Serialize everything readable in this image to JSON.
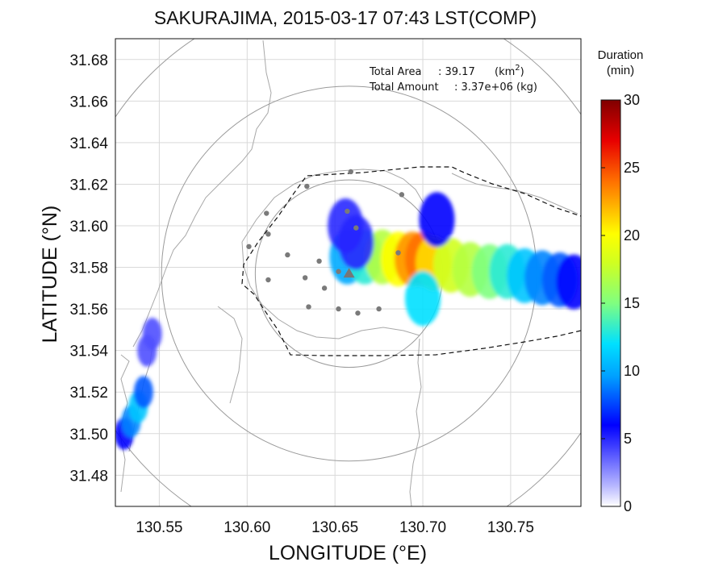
{
  "chart_data": {
    "type": "heatmap",
    "title": "SAKURAJIMA, 2015-03-17 07:43 LST(COMP)",
    "xlabel": "LONGITUDE (°E)",
    "ylabel": "LATITUDE (°N)",
    "xlim": [
      130.525,
      130.79
    ],
    "ylim": [
      31.465,
      31.69
    ],
    "xticks": [
      "130.55",
      "130.60",
      "130.65",
      "130.70",
      "130.75"
    ],
    "yticks": [
      "31.48",
      "31.50",
      "31.52",
      "31.54",
      "31.56",
      "31.58",
      "31.60",
      "31.62",
      "31.64",
      "31.66",
      "31.68"
    ],
    "grid": true,
    "annotations": {
      "area_label": "Total Area",
      "area_value": ": 39.17",
      "area_unit_pre": "(km",
      "area_unit_sup": "2",
      "area_unit_post": ")",
      "amount_label": "Total Amount",
      "amount_value": ": 3.37e+06",
      "amount_unit": "(kg)"
    },
    "colorbar": {
      "title_line1": "Duration",
      "title_line2": "(min)",
      "range": [
        0,
        30
      ],
      "ticks": [
        "0",
        "5",
        "10",
        "15",
        "20",
        "25",
        "30"
      ]
    },
    "vent": {
      "lon": 130.658,
      "lat": 31.577
    },
    "range_circles_km": [
      5,
      10,
      15
    ],
    "stations": [
      [
        130.659,
        31.626
      ],
      [
        130.634,
        31.619
      ],
      [
        130.688,
        31.615
      ],
      [
        130.657,
        31.607
      ],
      [
        130.662,
        31.599
      ],
      [
        130.611,
        31.606
      ],
      [
        130.612,
        31.596
      ],
      [
        130.601,
        31.59
      ],
      [
        130.623,
        31.586
      ],
      [
        130.633,
        31.575
      ],
      [
        130.641,
        31.583
      ],
      [
        130.652,
        31.578
      ],
      [
        130.612,
        31.574
      ],
      [
        130.644,
        31.57
      ],
      [
        130.635,
        31.561
      ],
      [
        130.652,
        31.56
      ],
      [
        130.663,
        31.558
      ],
      [
        130.675,
        31.56
      ],
      [
        130.686,
        31.587
      ]
    ],
    "ash_plumes": [
      {
        "name": "main",
        "points": [
          [
            130.657,
            31.585,
            10
          ],
          [
            130.667,
            31.585,
            13
          ],
          [
            130.677,
            31.585,
            17
          ],
          [
            130.686,
            31.584,
            20
          ],
          [
            130.694,
            31.584,
            23
          ],
          [
            130.7,
            31.584,
            24
          ],
          [
            130.706,
            31.582,
            21
          ],
          [
            130.716,
            31.581,
            18
          ],
          [
            130.727,
            31.579,
            17
          ],
          [
            130.738,
            31.578,
            15
          ],
          [
            130.748,
            31.578,
            13
          ],
          [
            130.758,
            31.576,
            11
          ],
          [
            130.768,
            31.575,
            9
          ],
          [
            130.778,
            31.574,
            8
          ],
          [
            130.786,
            31.573,
            6
          ],
          [
            130.662,
            31.592,
            5
          ],
          [
            130.656,
            31.6,
            5
          ],
          [
            130.7,
            31.565,
            12
          ],
          [
            130.708,
            31.603,
            6
          ]
        ]
      },
      {
        "name": "southwest",
        "points": [
          [
            130.53,
            31.5,
            6
          ],
          [
            130.534,
            31.506,
            9
          ],
          [
            130.538,
            31.513,
            11
          ],
          [
            130.541,
            31.52,
            8
          ],
          [
            130.543,
            31.54,
            4
          ],
          [
            130.546,
            31.548,
            4
          ]
        ]
      }
    ],
    "colors": {
      "coast": "#a8a8a8",
      "grid": "#d9d9d9",
      "range_circle": "#9a9a9a",
      "station": "#7a7a7a",
      "boundary": "#111111"
    }
  }
}
